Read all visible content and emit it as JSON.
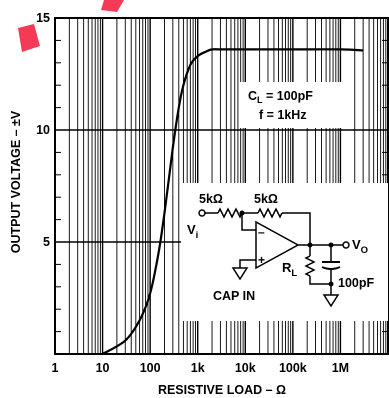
{
  "chart_data": {
    "type": "line",
    "xlabel": "RESISTIVE LOAD – Ω",
    "ylabel": "OUTPUT VOLTAGE – ±V",
    "x_scale": "log",
    "xlim": [
      1,
      10000000
    ],
    "ylim": [
      0,
      15
    ],
    "x_ticks": [
      {
        "value": 1,
        "label": "1"
      },
      {
        "value": 10,
        "label": "10"
      },
      {
        "value": 100,
        "label": "100"
      },
      {
        "value": 1000,
        "label": "1k"
      },
      {
        "value": 10000,
        "label": "10k"
      },
      {
        "value": 100000,
        "label": "100k"
      },
      {
        "value": 1000000,
        "label": "1M"
      }
    ],
    "y_ticks": [
      {
        "value": 5,
        "label": "5"
      },
      {
        "value": 10,
        "label": "10"
      },
      {
        "value": 15,
        "label": "15"
      }
    ],
    "grid": true,
    "series": [
      {
        "x": [
          10,
          30,
          60,
          100,
          150,
          200,
          300,
          400,
          500,
          700,
          1000,
          1500,
          2000,
          3000,
          10000,
          100000,
          1000000,
          3000000
        ],
        "y": [
          0,
          0.6,
          1.5,
          2.7,
          4.5,
          6.3,
          9.2,
          11.0,
          12.0,
          12.9,
          13.3,
          13.5,
          13.6,
          13.6,
          13.6,
          13.6,
          13.6,
          13.55
        ]
      }
    ],
    "annotations": {
      "cl": "C",
      "cl_sub": "L",
      "cl_value": " = 100pF",
      "freq": "f = 1kHz"
    }
  },
  "circuit": {
    "r1": "5kΩ",
    "r2": "5kΩ",
    "vin": "V",
    "vin_sub": "i",
    "vout": "V",
    "vout_sub": "O",
    "rl": "R",
    "rl_sub": "L",
    "cap": "100pF",
    "cap_in": "CAP IN",
    "minus": "–",
    "plus": "+"
  }
}
